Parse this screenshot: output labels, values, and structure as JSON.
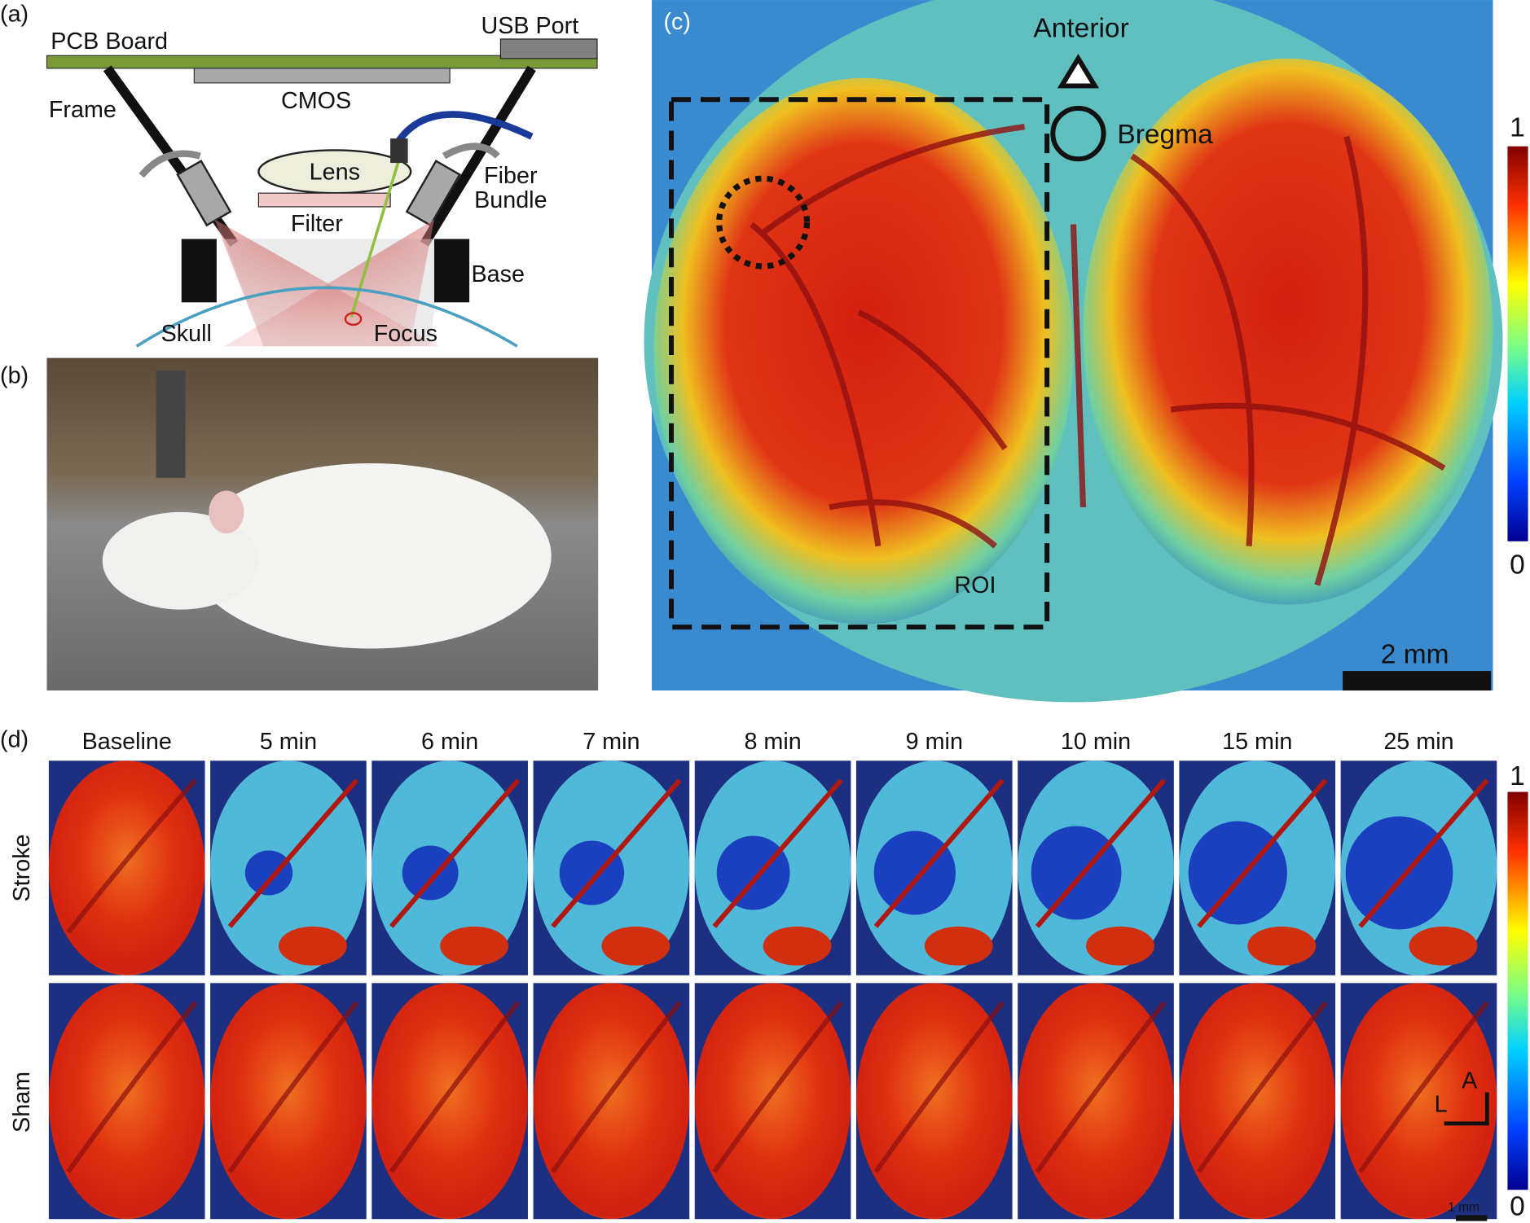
{
  "panel_a": {
    "label": "(a)",
    "pcb_board": "PCB Board",
    "usb_port": "USB Port",
    "frame": "Frame",
    "cmos": "CMOS",
    "lens": "Lens",
    "filter": "Filter",
    "fiber_bundle": [
      "Fiber",
      "Bundle"
    ],
    "base": "Base",
    "skull": "Skull",
    "focus": "Focus"
  },
  "panel_b": {
    "label": "(b)"
  },
  "panel_c": {
    "label": "(c)",
    "anterior": "Anterior",
    "bregma": "Bregma",
    "roi": "ROI",
    "scale_bar": "2 mm",
    "colorbar": {
      "max": 1,
      "min": 0
    }
  },
  "panel_d": {
    "label": "(d)",
    "columns": [
      "Baseline",
      "5 min",
      "6 min",
      "7 min",
      "8 min",
      "9 min",
      "10 min",
      "15 min",
      "25 min"
    ],
    "rows": [
      "Stroke",
      "Sham"
    ],
    "orientation": {
      "anterior": "A",
      "lateral": "L"
    },
    "scale_bar": "1 mm",
    "colorbar": {
      "max": 1,
      "min": 0
    }
  }
}
